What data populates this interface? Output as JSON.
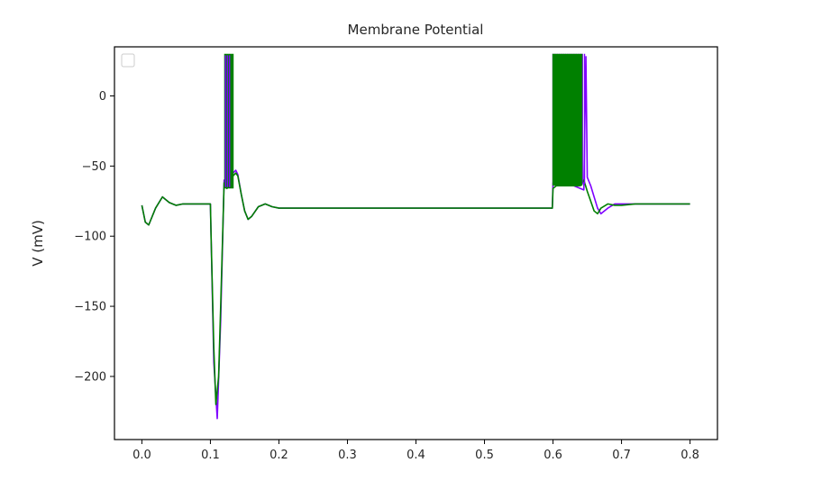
{
  "chart_data": {
    "type": "line",
    "title": "Membrane Potential",
    "xlabel": "",
    "ylabel": "V (mV)",
    "xlim": [
      -0.04,
      0.84
    ],
    "ylim": [
      -245,
      35
    ],
    "xticks": [
      0.0,
      0.1,
      0.2,
      0.3,
      0.4,
      0.5,
      0.6,
      0.7,
      0.8
    ],
    "xtick_labels": [
      "0.0",
      "0.1",
      "0.2",
      "0.3",
      "0.4",
      "0.5",
      "0.6",
      "0.7",
      "0.8"
    ],
    "yticks": [
      0,
      -50,
      -100,
      -150,
      -200
    ],
    "ytick_labels": [
      "0",
      "−50",
      "−100",
      "−150",
      "−200"
    ],
    "legend": {
      "placement": "upper-left",
      "entries": []
    },
    "grid": false,
    "series": [
      {
        "color": "#7f00ff",
        "x": [
          0.0,
          0.005,
          0.01,
          0.02,
          0.03,
          0.04,
          0.05,
          0.06,
          0.07,
          0.08,
          0.09,
          0.1,
          0.101,
          0.105,
          0.11,
          0.115,
          0.12,
          0.124,
          0.127,
          0.13,
          0.133,
          0.137,
          0.14,
          0.145,
          0.15,
          0.155,
          0.16,
          0.17,
          0.18,
          0.19,
          0.2,
          0.22,
          0.25,
          0.3,
          0.35,
          0.4,
          0.45,
          0.5,
          0.55,
          0.599,
          0.6,
          0.605,
          0.61,
          0.62,
          0.63,
          0.64,
          0.645,
          0.648,
          0.65,
          0.655,
          0.66,
          0.665,
          0.67,
          0.68,
          0.69,
          0.7,
          0.72,
          0.75,
          0.8
        ],
        "y": [
          -78,
          -90,
          -92,
          -80,
          -72,
          -76,
          -78,
          -77,
          -77,
          -77,
          -77,
          -77,
          -100,
          -190,
          -230,
          -160,
          -60,
          -66,
          -64,
          -62,
          -55,
          -53,
          -56,
          -70,
          -82,
          -88,
          -86,
          -79,
          -77,
          -79,
          -80,
          -80,
          -80,
          -80,
          -80,
          -80,
          -80,
          -80,
          -80,
          -80,
          -62,
          -61,
          -62,
          -63,
          -64,
          -66,
          -67,
          28,
          -58,
          -64,
          -72,
          -80,
          -84,
          -80,
          -77,
          -77,
          -77,
          -77,
          -77
        ]
      },
      {
        "color": "#008000",
        "x": [
          0.0,
          0.005,
          0.01,
          0.02,
          0.03,
          0.04,
          0.05,
          0.06,
          0.07,
          0.08,
          0.09,
          0.1,
          0.101,
          0.105,
          0.108,
          0.112,
          0.115,
          0.12,
          0.124,
          0.127,
          0.13,
          0.133,
          0.137,
          0.14,
          0.145,
          0.15,
          0.155,
          0.16,
          0.17,
          0.18,
          0.19,
          0.2,
          0.22,
          0.25,
          0.3,
          0.35,
          0.4,
          0.45,
          0.5,
          0.55,
          0.599,
          0.6,
          0.605,
          0.61,
          0.62,
          0.63,
          0.64,
          0.645,
          0.65,
          0.655,
          0.66,
          0.665,
          0.67,
          0.68,
          0.69,
          0.7,
          0.72,
          0.75,
          0.8
        ],
        "y": [
          -78,
          -90,
          -92,
          -80,
          -72,
          -76,
          -78,
          -77,
          -77,
          -77,
          -77,
          -77,
          -100,
          -180,
          -220,
          -200,
          -150,
          -62,
          -66,
          -64,
          -62,
          -57,
          -55,
          -57,
          -70,
          -82,
          -88,
          -86,
          -79,
          -77,
          -79,
          -80,
          -80,
          -80,
          -80,
          -80,
          -80,
          -80,
          -80,
          -80,
          -80,
          -66,
          -64,
          -64,
          -64,
          -64,
          -64,
          -60,
          -68,
          -75,
          -82,
          -84,
          -80,
          -77,
          -78,
          -78,
          -77,
          -77,
          -77
        ]
      }
    ],
    "spike_bursts": [
      {
        "color": "#008000",
        "x_start": 0.121,
        "x_end": 0.133,
        "count": 14,
        "y_top": 30,
        "y_bottom": -66
      },
      {
        "color": "#7f00ff",
        "x_start": 0.122,
        "x_end": 0.128,
        "count": 3,
        "y_top": 29,
        "y_bottom": -65
      },
      {
        "color": "#7f00ff",
        "x_start": 0.6,
        "x_end": 0.646,
        "count": 16,
        "y_top": 30,
        "y_bottom": -63
      },
      {
        "color": "#008000",
        "x_start": 0.6,
        "x_end": 0.642,
        "count": 70,
        "y_top": 30,
        "y_bottom": -64
      }
    ]
  }
}
